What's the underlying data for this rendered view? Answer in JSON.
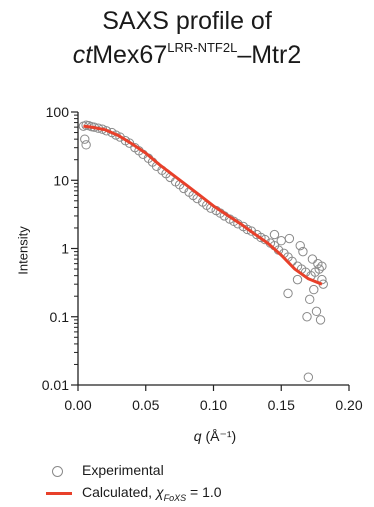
{
  "title": {
    "line1": "SAXS profile of",
    "line2_prefix": "ct",
    "line2_main": "Mex67",
    "line2_sup": "LRR-NTF2L",
    "line2_suffix": "–Mtr2"
  },
  "colors": {
    "experimental": "#8a8a8a",
    "calculated": "#e8402a",
    "axis": "#222222"
  },
  "chart_data": {
    "type": "scatter",
    "xlabel_var": "q",
    "xlabel_unit": "(Å⁻¹)",
    "ylabel": "Intensity",
    "xlim": [
      0.0,
      0.2
    ],
    "ylim": [
      0.01,
      100
    ],
    "yscale": "log",
    "grid": false,
    "x_ticks": [
      "0.00",
      "0.05",
      "0.10",
      "0.15",
      "0.20"
    ],
    "y_ticks": [
      {
        "value": 100,
        "label": "100"
      },
      {
        "value": 10,
        "label": "10"
      },
      {
        "value": 1,
        "label": "1"
      },
      {
        "value": 0.1,
        "label": "0.1"
      },
      {
        "value": 0.01,
        "label": "0.01"
      }
    ],
    "calculated_series": {
      "name": "Calculated",
      "x": [
        0.004,
        0.01,
        0.02,
        0.03,
        0.04,
        0.05,
        0.06,
        0.07,
        0.08,
        0.09,
        0.1,
        0.11,
        0.12,
        0.13,
        0.14,
        0.15,
        0.16,
        0.17,
        0.18
      ],
      "y": [
        62,
        60,
        55,
        45,
        34,
        25,
        17,
        12,
        8.5,
        6,
        4.2,
        3.1,
        2.3,
        1.65,
        1.2,
        0.8,
        0.5,
        0.36,
        0.3
      ]
    },
    "experimental_series": {
      "name": "Experimental",
      "x": [
        0.004,
        0.006,
        0.008,
        0.01,
        0.012,
        0.015,
        0.018,
        0.021,
        0.025,
        0.028,
        0.031,
        0.035,
        0.038,
        0.042,
        0.045,
        0.048,
        0.052,
        0.055,
        0.058,
        0.062,
        0.065,
        0.068,
        0.072,
        0.075,
        0.078,
        0.082,
        0.085,
        0.088,
        0.092,
        0.095,
        0.098,
        0.102,
        0.105,
        0.108,
        0.112,
        0.115,
        0.118,
        0.122,
        0.125,
        0.128,
        0.132,
        0.135,
        0.138,
        0.142,
        0.145,
        0.148,
        0.152,
        0.155,
        0.158,
        0.162,
        0.165,
        0.168,
        0.172,
        0.175,
        0.178,
        0.18,
        0.155,
        0.162,
        0.166,
        0.169,
        0.171,
        0.174,
        0.176,
        0.179,
        0.181,
        0.005,
        0.006,
        0.145,
        0.15,
        0.17,
        0.173,
        0.177,
        0.18,
        0.156,
        0.164
      ],
      "y": [
        62,
        64,
        63,
        61,
        60,
        58,
        56,
        53,
        50,
        46,
        43,
        38,
        35,
        30,
        27,
        24,
        21,
        18.5,
        16,
        14,
        12.5,
        11,
        9.5,
        8.6,
        7.6,
        6.7,
        6.0,
        5.4,
        4.8,
        4.3,
        3.9,
        3.6,
        3.3,
        3.0,
        2.7,
        2.5,
        2.3,
        2.1,
        1.9,
        1.8,
        1.6,
        1.45,
        1.35,
        1.2,
        1.1,
        0.95,
        0.85,
        0.75,
        0.65,
        0.55,
        0.5,
        0.45,
        0.4,
        0.45,
        0.5,
        0.55,
        0.22,
        0.35,
        0.9,
        0.1,
        0.18,
        0.25,
        0.12,
        0.09,
        0.3,
        40,
        33,
        1.6,
        1.3,
        0.013,
        0.7,
        0.6,
        0.35,
        1.4,
        1.1
      ]
    }
  },
  "legend": {
    "experimental_label": "Experimental",
    "calculated_label": "Calculated, ",
    "chi_symbol": "χ",
    "chi_sub": "FoXS",
    "chi_value": " = 1.0"
  }
}
